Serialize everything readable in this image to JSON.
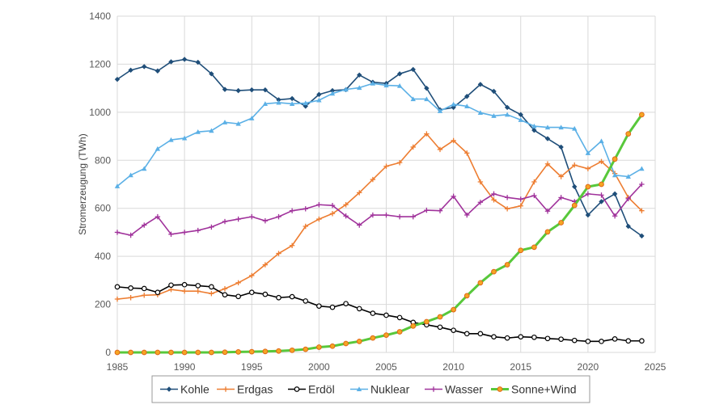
{
  "chart_data": {
    "type": "line",
    "title": "",
    "xlabel": "",
    "ylabel": "Stromerzeugung (TWh)",
    "xlim": [
      1985,
      2025
    ],
    "ylim": [
      0,
      1400
    ],
    "xticks": [
      1985,
      1990,
      1995,
      2000,
      2005,
      2010,
      2015,
      2020,
      2025
    ],
    "yticks": [
      0,
      200,
      400,
      600,
      800,
      1000,
      1200,
      1400
    ],
    "grid": true,
    "legend_position": "bottom",
    "x": [
      1985,
      1986,
      1987,
      1988,
      1989,
      1990,
      1991,
      1992,
      1993,
      1994,
      1995,
      1996,
      1997,
      1998,
      1999,
      2000,
      2001,
      2002,
      2003,
      2004,
      2005,
      2006,
      2007,
      2008,
      2009,
      2010,
      2011,
      2012,
      2013,
      2014,
      2015,
      2016,
      2017,
      2018,
      2019,
      2020,
      2021,
      2022,
      2023,
      2024
    ],
    "series": [
      {
        "name": "Kohle",
        "color": "#1f4e79",
        "marker": "diamond",
        "values": [
          1137,
          1175,
          1190,
          1172,
          1210,
          1220,
          1208,
          1160,
          1095,
          1090,
          1093,
          1093,
          1052,
          1057,
          1025,
          1074,
          1090,
          1094,
          1155,
          1125,
          1120,
          1160,
          1178,
          1100,
          1010,
          1020,
          1066,
          1116,
          1087,
          1020,
          990,
          925,
          890,
          855,
          690,
          572,
          628,
          660,
          525,
          485
        ]
      },
      {
        "name": "Erdgas",
        "color": "#ed7d31",
        "marker": "plus",
        "values": [
          222,
          228,
          238,
          240,
          262,
          255,
          255,
          245,
          265,
          290,
          320,
          365,
          412,
          445,
          525,
          555,
          578,
          615,
          665,
          720,
          775,
          790,
          855,
          910,
          845,
          882,
          830,
          710,
          635,
          598,
          610,
          710,
          785,
          732,
          780,
          765,
          795,
          745,
          645,
          590
        ]
      },
      {
        "name": "Erdöl",
        "color": "#000000",
        "marker": "circle-open",
        "values": [
          273,
          268,
          266,
          250,
          280,
          282,
          278,
          273,
          240,
          233,
          250,
          242,
          228,
          232,
          214,
          193,
          188,
          203,
          182,
          163,
          155,
          145,
          125,
          115,
          105,
          92,
          78,
          78,
          65,
          60,
          65,
          63,
          58,
          55,
          50,
          46,
          46,
          56,
          48,
          48
        ]
      },
      {
        "name": "Nuklear",
        "color": "#5bb0e6",
        "marker": "triangle",
        "values": [
          692,
          738,
          765,
          848,
          885,
          892,
          918,
          923,
          958,
          952,
          975,
          1035,
          1040,
          1035,
          1038,
          1050,
          1078,
          1095,
          1102,
          1120,
          1112,
          1110,
          1055,
          1055,
          1005,
          1033,
          1025,
          998,
          985,
          990,
          968,
          942,
          937,
          937,
          932,
          830,
          880,
          738,
          732,
          765
        ]
      },
      {
        "name": "Wasser",
        "color": "#a0329b",
        "marker": "plus",
        "values": [
          500,
          488,
          530,
          565,
          492,
          500,
          508,
          522,
          545,
          555,
          565,
          548,
          565,
          590,
          598,
          615,
          612,
          568,
          530,
          572,
          572,
          565,
          565,
          592,
          590,
          650,
          572,
          625,
          660,
          645,
          638,
          653,
          588,
          645,
          628,
          660,
          655,
          568,
          640,
          700
        ]
      },
      {
        "name": "Sonne+Wind",
        "color": "#58c83b",
        "marker": "circle-orange",
        "values": [
          0,
          0,
          0,
          0,
          0,
          0,
          0,
          0,
          1,
          2,
          3,
          4,
          6,
          9,
          13,
          22,
          26,
          37,
          46,
          60,
          72,
          86,
          110,
          128,
          148,
          178,
          236,
          290,
          336,
          365,
          425,
          438,
          502,
          540,
          612,
          690,
          700,
          805,
          910,
          990
        ]
      }
    ]
  }
}
